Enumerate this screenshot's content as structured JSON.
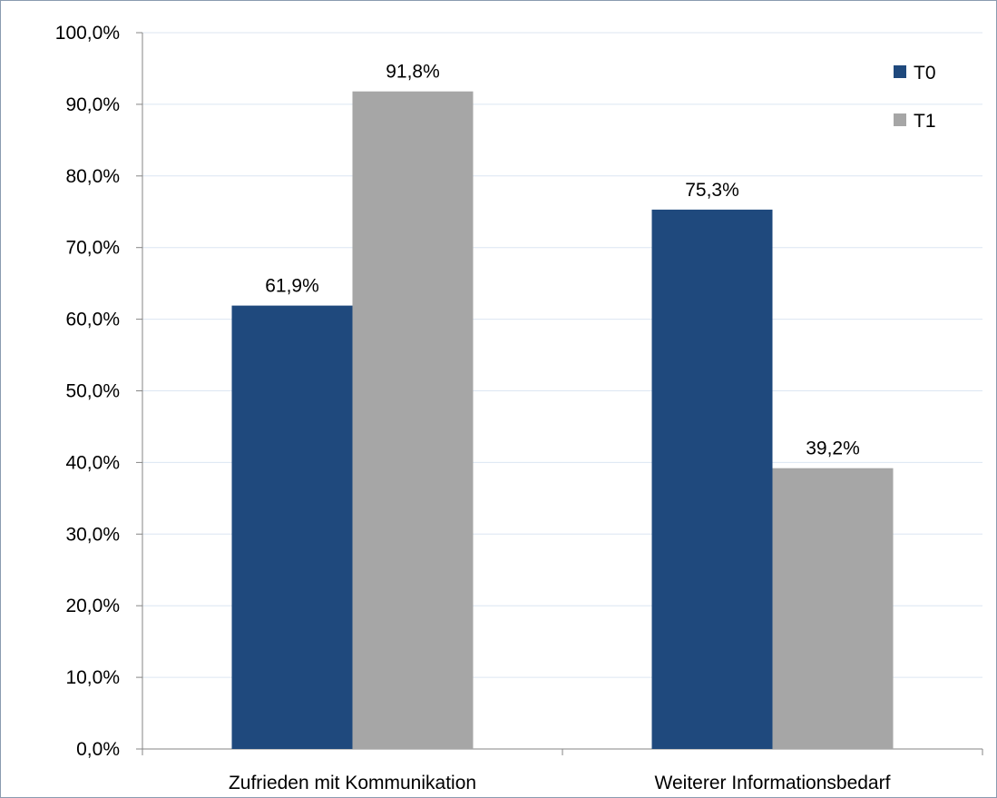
{
  "chart_data": {
    "type": "bar",
    "categories": [
      "Zufrieden mit Kommunikation",
      "Weiterer Informationsbedarf"
    ],
    "series": [
      {
        "name": "T0",
        "values": [
          61.9,
          75.3
        ],
        "labels": [
          "61,9%",
          "75,3%"
        ],
        "color": "#1f497d"
      },
      {
        "name": "T1",
        "values": [
          91.8,
          39.2
        ],
        "labels": [
          "91,8%",
          "39,2%"
        ],
        "color": "#a6a6a6"
      }
    ],
    "ylim": [
      0,
      100
    ],
    "yticks": [
      0,
      10,
      20,
      30,
      40,
      50,
      60,
      70,
      80,
      90,
      100
    ],
    "ytick_labels": [
      "0,0%",
      "10,0%",
      "20,0%",
      "30,0%",
      "40,0%",
      "50,0%",
      "60,0%",
      "70,0%",
      "80,0%",
      "90,0%",
      "100,0%"
    ],
    "grid": true,
    "legend_position": "top-right",
    "gridline_color": "#dce6f2",
    "axis_color": "#868686"
  }
}
